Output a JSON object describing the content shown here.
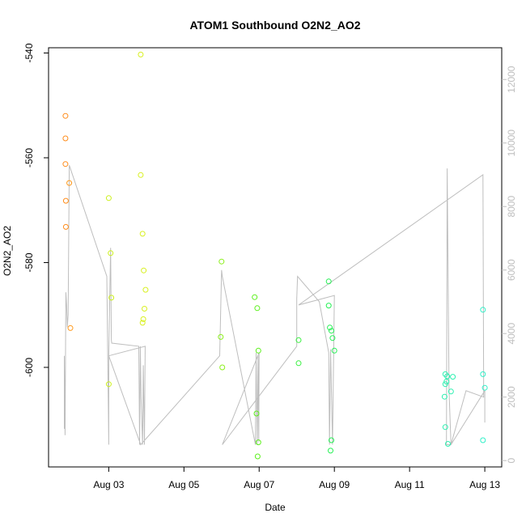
{
  "chart_data": {
    "type": "scatter",
    "title": "ATOM1 Southbound O2N2_AO2",
    "xlabel": "Date",
    "ylabel": "O2N2_AO2",
    "x_ticks": [
      "Aug 03",
      "Aug 05",
      "Aug 07",
      "Aug 09",
      "Aug 11",
      "Aug 13"
    ],
    "x_tick_days": [
      3,
      5,
      7,
      9,
      11,
      13
    ],
    "xlim_days": [
      1.4,
      13.45
    ],
    "y_ticks": [
      -540,
      -560,
      -580,
      -600
    ],
    "ylim": [
      -619,
      -539
    ],
    "right_axis": {
      "ticks": [
        0,
        2000,
        4000,
        6000,
        8000,
        10000,
        12000
      ],
      "ylim": [
        -200,
        13000
      ],
      "color": "#bebebe"
    },
    "points_series": {
      "name": "O2N2_AO2",
      "points": [
        {
          "x": 1.85,
          "y": -552.0,
          "color": "#ff8c1a"
        },
        {
          "x": 1.85,
          "y": -556.3,
          "color": "#ff8c1a"
        },
        {
          "x": 1.85,
          "y": -561.2,
          "color": "#ff8c1a"
        },
        {
          "x": 1.86,
          "y": -568.2,
          "color": "#ff8c1a"
        },
        {
          "x": 1.86,
          "y": -573.2,
          "color": "#ff8c1a"
        },
        {
          "x": 1.95,
          "y": -564.8,
          "color": "#ff9a1f"
        },
        {
          "x": 1.98,
          "y": -592.5,
          "color": "#ff9a1f"
        },
        {
          "x": 3.0,
          "y": -567.7,
          "color": "#ccf01c"
        },
        {
          "x": 3.05,
          "y": -578.2,
          "color": "#ccf01c"
        },
        {
          "x": 3.07,
          "y": -586.7,
          "color": "#ccf01c"
        },
        {
          "x": 3.0,
          "y": -603.2,
          "color": "#ccf01c"
        },
        {
          "x": 3.85,
          "y": -540.3,
          "color": "#d8f020"
        },
        {
          "x": 3.85,
          "y": -563.3,
          "color": "#d8f020"
        },
        {
          "x": 3.9,
          "y": -574.5,
          "color": "#d8f020"
        },
        {
          "x": 3.93,
          "y": -581.5,
          "color": "#d8f020"
        },
        {
          "x": 3.98,
          "y": -585.2,
          "color": "#d8f020"
        },
        {
          "x": 3.95,
          "y": -588.8,
          "color": "#d8f020"
        },
        {
          "x": 3.92,
          "y": -590.8,
          "color": "#d8f020"
        },
        {
          "x": 3.9,
          "y": -591.5,
          "color": "#d8f020"
        },
        {
          "x": 6.0,
          "y": -579.8,
          "color": "#8cf01c"
        },
        {
          "x": 5.98,
          "y": -594.2,
          "color": "#8cf01c"
        },
        {
          "x": 6.02,
          "y": -600.0,
          "color": "#8cf01c"
        },
        {
          "x": 6.88,
          "y": -586.6,
          "color": "#5cf01c"
        },
        {
          "x": 6.95,
          "y": -588.7,
          "color": "#5cf01c"
        },
        {
          "x": 6.98,
          "y": -596.8,
          "color": "#5cf01c"
        },
        {
          "x": 6.93,
          "y": -608.8,
          "color": "#5cf01c"
        },
        {
          "x": 6.98,
          "y": -614.3,
          "color": "#5cf01c"
        },
        {
          "x": 6.96,
          "y": -617.0,
          "color": "#5cf01c"
        },
        {
          "x": 8.05,
          "y": -594.8,
          "color": "#38f040"
        },
        {
          "x": 8.05,
          "y": -599.2,
          "color": "#38f040"
        },
        {
          "x": 8.85,
          "y": -583.6,
          "color": "#24f054"
        },
        {
          "x": 8.85,
          "y": -588.2,
          "color": "#24f054"
        },
        {
          "x": 8.88,
          "y": -592.4,
          "color": "#24f054"
        },
        {
          "x": 8.92,
          "y": -593.0,
          "color": "#24f054"
        },
        {
          "x": 8.95,
          "y": -594.4,
          "color": "#24f054"
        },
        {
          "x": 9.0,
          "y": -596.8,
          "color": "#24f054"
        },
        {
          "x": 8.92,
          "y": -613.9,
          "color": "#24f054"
        },
        {
          "x": 8.9,
          "y": -615.9,
          "color": "#24f054"
        },
        {
          "x": 11.95,
          "y": -601.3,
          "color": "#2cf0b0"
        },
        {
          "x": 12.0,
          "y": -601.7,
          "color": "#2cf0b0"
        },
        {
          "x": 12.15,
          "y": -601.8,
          "color": "#2cf0b0"
        },
        {
          "x": 11.98,
          "y": -602.7,
          "color": "#2cf0b0"
        },
        {
          "x": 11.95,
          "y": -603.2,
          "color": "#2cf0b0"
        },
        {
          "x": 12.1,
          "y": -604.6,
          "color": "#2cf0b0"
        },
        {
          "x": 11.93,
          "y": -605.6,
          "color": "#2cf0b0"
        },
        {
          "x": 11.95,
          "y": -611.4,
          "color": "#2cf0b0"
        },
        {
          "x": 12.02,
          "y": -614.6,
          "color": "#2cf0b0"
        },
        {
          "x": 12.95,
          "y": -589.0,
          "color": "#30f0c8"
        },
        {
          "x": 12.95,
          "y": -601.3,
          "color": "#30f0c8"
        },
        {
          "x": 13.0,
          "y": -603.9,
          "color": "#30f0c8"
        },
        {
          "x": 12.95,
          "y": -613.9,
          "color": "#30f0c8"
        }
      ]
    },
    "line_series": {
      "name": "",
      "color": "#bebebe",
      "points": [
        [
          1.82,
          1000
        ],
        [
          1.82,
          3300
        ],
        [
          1.84,
          800
        ],
        [
          1.86,
          5300
        ],
        [
          1.88,
          4900
        ],
        [
          1.9,
          4200
        ],
        [
          1.92,
          4600
        ],
        [
          1.95,
          9300
        ],
        [
          2.95,
          5800
        ],
        [
          3.0,
          500
        ],
        [
          3.0,
          3300
        ],
        [
          3.05,
          6700
        ],
        [
          3.07,
          3800
        ],
        [
          3.08,
          3700
        ],
        [
          3.8,
          3600
        ],
        [
          3.82,
          500
        ],
        [
          3.84,
          3600
        ],
        [
          3.86,
          2000
        ],
        [
          3.9,
          500
        ],
        [
          3.92,
          3000
        ],
        [
          3.95,
          500
        ],
        [
          3.97,
          3600
        ],
        [
          3.0,
          3300
        ],
        [
          3.85,
          500
        ],
        [
          5.95,
          3300
        ],
        [
          6.0,
          6000
        ],
        [
          6.02,
          5800
        ],
        [
          6.9,
          500
        ],
        [
          6.92,
          3400
        ],
        [
          6.95,
          500
        ],
        [
          6.97,
          3300
        ],
        [
          6.99,
          600
        ],
        [
          7.0,
          3400
        ],
        [
          6.02,
          500
        ],
        [
          8.0,
          3600
        ],
        [
          8.0,
          5100
        ],
        [
          8.02,
          5800
        ],
        [
          8.6,
          5000
        ],
        [
          8.85,
          3400
        ],
        [
          8.87,
          500
        ],
        [
          8.9,
          3500
        ],
        [
          8.95,
          500
        ],
        [
          9.0,
          5200
        ],
        [
          8.05,
          4900
        ],
        [
          12.95,
          9000
        ],
        [
          12.97,
          2000
        ],
        [
          12.5,
          2200
        ],
        [
          12.1,
          500
        ],
        [
          12.05,
          2200
        ],
        [
          12.0,
          9200
        ],
        [
          11.98,
          500
        ],
        [
          12.1,
          500
        ],
        [
          13.0,
          2200
        ],
        [
          13.0,
          1200
        ]
      ]
    },
    "grid": false,
    "legend": "none"
  }
}
